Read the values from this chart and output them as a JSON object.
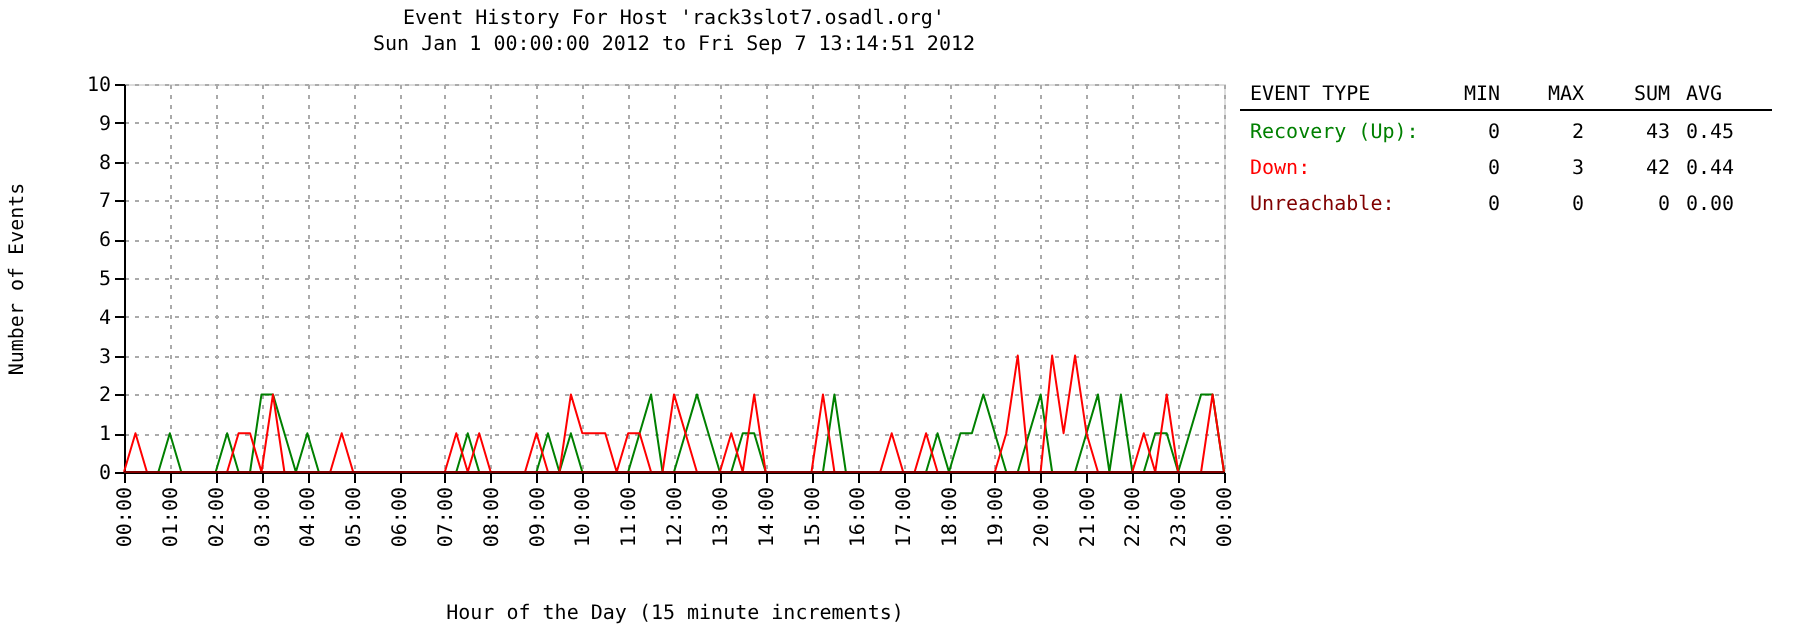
{
  "chart_data": {
    "type": "line",
    "title": "Event History For Host 'rack3slot7.osadl.org'",
    "subtitle": "Sun Jan  1 00:00:00 2012 to Fri Sep  7 13:14:51 2012",
    "xlabel": "Hour of the Day (15 minute increments)",
    "ylabel": "Number of Events",
    "legend_title": "EVENT TYPE",
    "legend": "right",
    "grid": true,
    "marker": "none",
    "line_style": "solid",
    "x": [
      0,
      0.25,
      0.5,
      0.75,
      1,
      1.25,
      1.5,
      1.75,
      2,
      2.25,
      2.5,
      2.75,
      3,
      3.25,
      3.5,
      3.75,
      4,
      4.25,
      4.5,
      4.75,
      5,
      5.25,
      5.5,
      5.75,
      6,
      6.25,
      6.5,
      6.75,
      7,
      7.25,
      7.5,
      7.75,
      8,
      8.25,
      8.5,
      8.75,
      9,
      9.25,
      9.5,
      9.75,
      10,
      10.25,
      10.5,
      10.75,
      11,
      11.25,
      11.5,
      11.75,
      12,
      12.25,
      12.5,
      12.75,
      13,
      13.25,
      13.5,
      13.75,
      14,
      14.25,
      14.5,
      14.75,
      15,
      15.25,
      15.5,
      15.75,
      16,
      16.25,
      16.5,
      16.75,
      17,
      17.25,
      17.5,
      17.75,
      18,
      18.25,
      18.5,
      18.75,
      19,
      19.25,
      19.5,
      19.75,
      20,
      20.25,
      20.5,
      20.75,
      21,
      21.25,
      21.5,
      21.75,
      22,
      22.25,
      22.5,
      22.75,
      23,
      23.25,
      23.5,
      23.75,
      24
    ],
    "series": [
      {
        "name": "Recovery (Up):",
        "color": "#008000",
        "values": [
          0,
          0,
          0,
          0,
          1,
          0,
          0,
          0,
          0,
          1,
          0,
          0,
          2,
          2,
          1,
          0,
          1,
          0,
          0,
          0,
          0,
          0,
          0,
          0,
          0,
          0,
          0,
          0,
          0,
          0,
          1,
          0,
          0,
          0,
          0,
          0,
          0,
          1,
          0,
          1,
          0,
          0,
          0,
          0,
          0,
          1,
          2,
          0,
          0,
          1,
          2,
          1,
          0,
          0,
          1,
          1,
          0,
          0,
          0,
          0,
          0,
          0,
          2,
          0,
          0,
          0,
          0,
          0,
          0,
          0,
          0,
          1,
          0,
          1,
          1,
          2,
          1,
          0,
          0,
          1,
          2,
          0,
          0,
          0,
          1,
          2,
          0,
          2,
          0,
          0,
          1,
          1,
          0,
          1,
          2,
          2,
          0
        ]
      },
      {
        "name": "Down:",
        "color": "#ff0000",
        "values": [
          0,
          1,
          0,
          0,
          0,
          0,
          0,
          0,
          0,
          0,
          1,
          1,
          0,
          2,
          0,
          0,
          0,
          0,
          0,
          1,
          0,
          0,
          0,
          0,
          0,
          0,
          0,
          0,
          0,
          1,
          0,
          1,
          0,
          0,
          0,
          0,
          1,
          0,
          0,
          2,
          1,
          1,
          1,
          0,
          1,
          1,
          0,
          0,
          2,
          1,
          0,
          0,
          0,
          1,
          0,
          2,
          0,
          0,
          0,
          0,
          0,
          2,
          0,
          0,
          0,
          0,
          0,
          1,
          0,
          0,
          1,
          0,
          0,
          0,
          0,
          0,
          0,
          1,
          3,
          0,
          0,
          3,
          1,
          3,
          1,
          0,
          0,
          0,
          0,
          1,
          0,
          2,
          0,
          0,
          0,
          2,
          0
        ]
      },
      {
        "name": "Unreachable:",
        "color": "#800000",
        "values": [
          0,
          0,
          0,
          0,
          0,
          0,
          0,
          0,
          0,
          0,
          0,
          0,
          0,
          0,
          0,
          0,
          0,
          0,
          0,
          0,
          0,
          0,
          0,
          0,
          0,
          0,
          0,
          0,
          0,
          0,
          0,
          0,
          0,
          0,
          0,
          0,
          0,
          0,
          0,
          0,
          0,
          0,
          0,
          0,
          0,
          0,
          0,
          0,
          0,
          0,
          0,
          0,
          0,
          0,
          0,
          0,
          0,
          0,
          0,
          0,
          0,
          0,
          0,
          0,
          0,
          0,
          0,
          0,
          0,
          0,
          0,
          0,
          0,
          0,
          0,
          0,
          0,
          0,
          0,
          0,
          0,
          0,
          0,
          0,
          0,
          0,
          0,
          0,
          0,
          0,
          0,
          0,
          0,
          0,
          0,
          0,
          0
        ]
      }
    ],
    "xlim": [
      0,
      24
    ],
    "xticks": [
      {
        "value": 0,
        "label": "00:00"
      },
      {
        "value": 1,
        "label": "01:00"
      },
      {
        "value": 2,
        "label": "02:00"
      },
      {
        "value": 3,
        "label": "03:00"
      },
      {
        "value": 4,
        "label": "04:00"
      },
      {
        "value": 5,
        "label": "05:00"
      },
      {
        "value": 6,
        "label": "06:00"
      },
      {
        "value": 7,
        "label": "07:00"
      },
      {
        "value": 8,
        "label": "08:00"
      },
      {
        "value": 9,
        "label": "09:00"
      },
      {
        "value": 10,
        "label": "10:00"
      },
      {
        "value": 11,
        "label": "11:00"
      },
      {
        "value": 12,
        "label": "12:00"
      },
      {
        "value": 13,
        "label": "13:00"
      },
      {
        "value": 14,
        "label": "14:00"
      },
      {
        "value": 15,
        "label": "15:00"
      },
      {
        "value": 16,
        "label": "16:00"
      },
      {
        "value": 17,
        "label": "17:00"
      },
      {
        "value": 18,
        "label": "18:00"
      },
      {
        "value": 19,
        "label": "19:00"
      },
      {
        "value": 20,
        "label": "20:00"
      },
      {
        "value": 21,
        "label": "21:00"
      },
      {
        "value": 22,
        "label": "22:00"
      },
      {
        "value": 23,
        "label": "23:00"
      },
      {
        "value": 24,
        "label": "00:00"
      }
    ],
    "ylim": [
      0,
      10
    ],
    "yticks": [
      0,
      1,
      2,
      3,
      4,
      5,
      6,
      7,
      8,
      9,
      10
    ],
    "annotations": [
      "MIN",
      "MAX",
      "SUM",
      "AVG",
      "0",
      "2",
      "43",
      "0.45",
      "0",
      "3",
      "42",
      "0.44",
      "0",
      "0",
      "0",
      "0.00"
    ]
  }
}
